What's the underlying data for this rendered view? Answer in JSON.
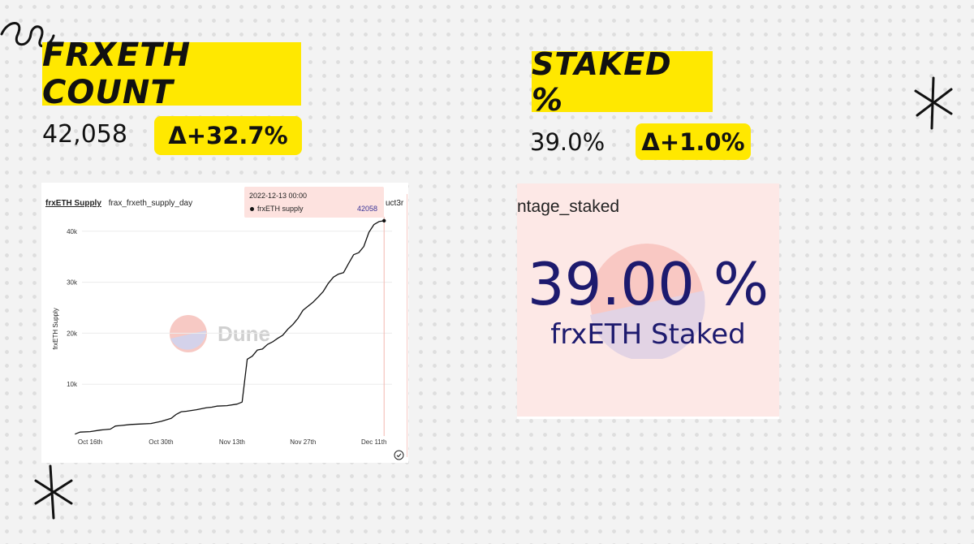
{
  "left": {
    "title": "FRXETH COUNT",
    "value": "42,058",
    "delta": "Δ+32.7%"
  },
  "right": {
    "title": "STAKED %",
    "value": "39.0%",
    "delta": "Δ+1.0%",
    "panel_label": "ntage_staked",
    "big_value": "39.00 %",
    "big_caption": "frxETH Staked"
  },
  "chart_panel": {
    "tab_active": "frxETH Supply",
    "tab_query": "frax_frxeth_supply_day",
    "tab_cut": "uct3r",
    "watermark": "Dune",
    "tooltip": {
      "date": "2022-12-13 00:00",
      "series": "frxETH supply",
      "value": "42058"
    }
  },
  "colors": {
    "highlight": "#ffe800",
    "counter_navy": "#1d1a6e",
    "panel_pink": "#fde8e6"
  },
  "chart_data": {
    "type": "line",
    "ylabel": "frxETH Supply",
    "xlabel": "",
    "x_ticks": [
      "Oct 16th",
      "Oct 30th",
      "Nov 13th",
      "Nov 27th",
      "Dec 11th"
    ],
    "y_ticks": [
      "10k",
      "20k",
      "30k",
      "40k"
    ],
    "ylim": [
      0,
      42000
    ],
    "grid": true,
    "series": [
      {
        "name": "frxETH supply",
        "x": [
          "2022-10-13",
          "2022-10-14",
          "2022-10-16",
          "2022-10-18",
          "2022-10-20",
          "2022-10-21",
          "2022-10-22",
          "2022-10-24",
          "2022-10-26",
          "2022-10-28",
          "2022-10-30",
          "2022-11-01",
          "2022-11-02",
          "2022-11-03",
          "2022-11-04",
          "2022-11-06",
          "2022-11-08",
          "2022-11-09",
          "2022-11-10",
          "2022-11-12",
          "2022-11-14",
          "2022-11-15",
          "2022-11-16",
          "2022-11-17",
          "2022-11-18",
          "2022-11-19",
          "2022-11-20",
          "2022-11-21",
          "2022-11-22",
          "2022-11-23",
          "2022-11-24",
          "2022-11-25",
          "2022-11-26",
          "2022-11-27",
          "2022-11-28",
          "2022-11-29",
          "2022-11-30",
          "2022-12-01",
          "2022-12-02",
          "2022-12-03",
          "2022-12-04",
          "2022-12-05",
          "2022-12-06",
          "2022-12-07",
          "2022-12-08",
          "2022-12-09",
          "2022-12-10",
          "2022-12-11",
          "2022-12-12",
          "2022-12-13"
        ],
        "values": [
          200,
          600,
          700,
          1000,
          1200,
          1800,
          1900,
          2100,
          2200,
          2300,
          2700,
          3300,
          4100,
          4600,
          4700,
          5000,
          5400,
          5500,
          5700,
          5800,
          6100,
          6500,
          14900,
          15500,
          16700,
          16900,
          17800,
          18300,
          19000,
          19600,
          20800,
          21700,
          22900,
          24500,
          25300,
          26100,
          27100,
          28200,
          29800,
          31000,
          31600,
          31900,
          33700,
          35400,
          35800,
          37000,
          39800,
          41300,
          41900,
          42058
        ]
      }
    ]
  }
}
